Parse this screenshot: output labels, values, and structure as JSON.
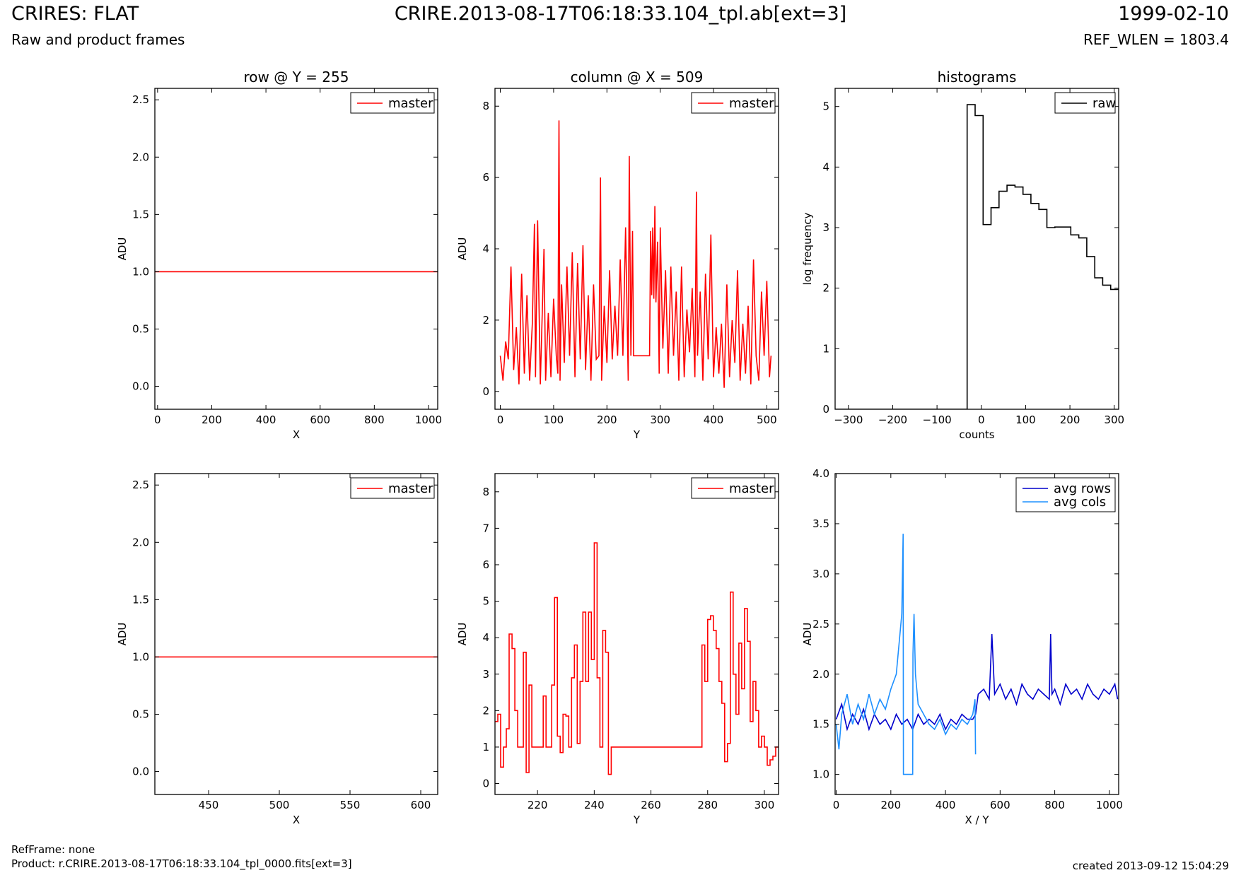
{
  "header": {
    "title": "CRIRES: FLAT",
    "subtitle": "Raw and product frames",
    "file_label": "CRIRE.2013-08-17T06:18:33.104_tpl.ab[ext=3]",
    "date": "1999-02-10",
    "ref_wlen": "REF_WLEN = 1803.4"
  },
  "footer": {
    "refframe": "RefFrame: none",
    "product": "Product: r.CRIRE.2013-08-17T06:18:33.104_tpl_0000.fits[ext=3]",
    "created": "created 2013-09-12 15:04:29"
  },
  "colors": {
    "master": "#ff0000",
    "raw": "#000000",
    "avg_rows": "#0000cc",
    "avg_cols": "#1e90ff"
  },
  "chart_data": [
    {
      "type": "line",
      "title": "row @ Y = 255",
      "xlabel": "X",
      "ylabel": "ADU",
      "xlim": [
        -10,
        1034
      ],
      "ylim": [
        -0.2,
        2.6
      ],
      "xticks": [
        0,
        200,
        400,
        600,
        800,
        1000
      ],
      "yticks": [
        0.0,
        0.5,
        1.0,
        1.5,
        2.0,
        2.5
      ],
      "ytick_labels": [
        "0.0",
        "0.5",
        "1.0",
        "1.5",
        "2.0",
        "2.5"
      ],
      "legend": "upper right",
      "series": [
        {
          "name": "master",
          "color": "#ff0000",
          "x": [
            -10,
            1034
          ],
          "y": [
            1.0,
            1.0
          ]
        }
      ]
    },
    {
      "type": "line",
      "title": "column @ X = 509",
      "xlabel": "Y",
      "ylabel": "ADU",
      "xlim": [
        -10,
        522
      ],
      "ylim": [
        -0.5,
        8.5
      ],
      "xticks": [
        0,
        100,
        200,
        300,
        400,
        500
      ],
      "yticks": [
        0,
        2,
        4,
        6,
        8
      ],
      "ytick_labels": [
        "0",
        "2",
        "4",
        "6",
        "8"
      ],
      "legend": "upper right",
      "series": [
        {
          "name": "master",
          "color": "#ff0000",
          "x": [
            0,
            5,
            10,
            15,
            20,
            25,
            30,
            35,
            40,
            45,
            50,
            55,
            60,
            64,
            66,
            70,
            75,
            80,
            82,
            85,
            90,
            95,
            100,
            105,
            108,
            110,
            112,
            115,
            120,
            125,
            130,
            135,
            140,
            145,
            150,
            155,
            160,
            165,
            170,
            175,
            180,
            185,
            188,
            190,
            195,
            200,
            205,
            210,
            215,
            220,
            225,
            230,
            235,
            240,
            242,
            245,
            248,
            250,
            260,
            270,
            280,
            282,
            284,
            286,
            288,
            290,
            292,
            295,
            298,
            300,
            305,
            310,
            315,
            320,
            325,
            330,
            335,
            340,
            345,
            350,
            355,
            360,
            365,
            368,
            370,
            375,
            380,
            385,
            390,
            395,
            400,
            405,
            410,
            415,
            420,
            425,
            430,
            435,
            440,
            445,
            450,
            455,
            460,
            465,
            470,
            475,
            480,
            485,
            490,
            495,
            500,
            505,
            508
          ],
          "y": [
            1.0,
            0.3,
            1.4,
            0.9,
            3.5,
            0.6,
            1.8,
            0.2,
            3.3,
            0.5,
            2.7,
            0.3,
            1.9,
            4.7,
            0.4,
            4.8,
            0.2,
            2.9,
            4.0,
            0.3,
            2.2,
            0.4,
            2.6,
            1.0,
            0.5,
            7.6,
            0.3,
            3.0,
            0.8,
            3.5,
            1.0,
            3.9,
            0.4,
            3.6,
            0.9,
            4.1,
            0.6,
            2.7,
            0.3,
            3.0,
            0.9,
            1.0,
            6.0,
            0.3,
            2.4,
            0.8,
            3.4,
            0.9,
            2.4,
            1.0,
            3.7,
            1.0,
            4.6,
            0.3,
            6.6,
            1.0,
            4.5,
            1.0,
            1.0,
            1.0,
            1.0,
            4.5,
            2.7,
            4.6,
            2.6,
            5.2,
            2.5,
            4.2,
            0.5,
            4.6,
            1.2,
            3.4,
            0.5,
            3.5,
            1.0,
            2.8,
            0.3,
            3.5,
            0.4,
            2.3,
            1.1,
            2.9,
            0.4,
            5.6,
            1.0,
            2.8,
            0.3,
            3.3,
            0.9,
            4.4,
            0.4,
            1.8,
            0.5,
            1.9,
            0.1,
            3.0,
            0.4,
            2.0,
            0.8,
            3.4,
            0.3,
            1.9,
            0.5,
            2.4,
            0.2,
            3.7,
            1.0,
            0.3,
            2.8,
            1.0,
            3.1,
            0.4,
            1.0
          ]
        }
      ]
    },
    {
      "type": "line",
      "title": "histograms",
      "xlabel": "counts",
      "ylabel": "log frequency",
      "xlim": [
        -330,
        310
      ],
      "ylim": [
        0,
        5.3
      ],
      "xticks": [
        -300,
        -200,
        -100,
        0,
        100,
        200,
        300
      ],
      "xtick_labels": [
        "−300",
        "−200",
        "−100",
        "0",
        "100",
        "200",
        "300"
      ],
      "yticks": [
        0,
        1,
        2,
        3,
        4,
        5
      ],
      "ytick_labels": [
        "0",
        "1",
        "2",
        "3",
        "4",
        "5"
      ],
      "legend": "upper right",
      "series": [
        {
          "name": "raw",
          "color": "#000000",
          "x": [
            -330,
            -32,
            -32,
            -14,
            -14,
            4,
            4,
            22,
            22,
            40,
            40,
            58,
            58,
            76,
            76,
            94,
            94,
            112,
            112,
            130,
            130,
            148,
            148,
            166,
            166,
            184,
            184,
            202,
            202,
            220,
            220,
            238,
            238,
            256,
            256,
            274,
            274,
            292,
            292,
            310
          ],
          "y": [
            0,
            0,
            5.03,
            5.03,
            4.85,
            4.85,
            3.05,
            3.05,
            3.33,
            3.33,
            3.6,
            3.6,
            3.7,
            3.7,
            3.67,
            3.67,
            3.55,
            3.55,
            3.4,
            3.4,
            3.3,
            3.3,
            3.0,
            3.0,
            3.01,
            3.01,
            3.01,
            3.01,
            2.88,
            2.88,
            2.83,
            2.83,
            2.52,
            2.52,
            2.17,
            2.17,
            2.05,
            2.05,
            1.98,
            1.98
          ]
        }
      ]
    },
    {
      "type": "line",
      "xlabel": "X",
      "ylabel": "ADU",
      "xlim": [
        412,
        612
      ],
      "ylim": [
        -0.2,
        2.6
      ],
      "xticks": [
        450,
        500,
        550,
        600
      ],
      "yticks": [
        0.0,
        0.5,
        1.0,
        1.5,
        2.0,
        2.5
      ],
      "ytick_labels": [
        "0.0",
        "0.5",
        "1.0",
        "1.5",
        "2.0",
        "2.5"
      ],
      "legend": "upper right",
      "series": [
        {
          "name": "master",
          "color": "#ff0000",
          "x": [
            412,
            612
          ],
          "y": [
            1.0,
            1.0
          ]
        }
      ]
    },
    {
      "type": "line",
      "xlabel": "Y",
      "ylabel": "ADU",
      "xlim": [
        205,
        305
      ],
      "ylim": [
        -0.3,
        8.5
      ],
      "xticks": [
        220,
        240,
        260,
        280,
        300
      ],
      "yticks": [
        0,
        1,
        2,
        3,
        4,
        5,
        6,
        7,
        8
      ],
      "ytick_labels": [
        "0",
        "1",
        "2",
        "3",
        "4",
        "5",
        "6",
        "7",
        "8"
      ],
      "legend": "upper right",
      "series": [
        {
          "name": "master",
          "color": "#ff0000",
          "x": [
            205,
            206,
            207,
            208,
            209,
            210,
            211,
            212,
            213,
            214,
            215,
            216,
            217,
            218,
            219,
            220,
            221,
            222,
            223,
            224,
            225,
            226,
            227,
            228,
            229,
            230,
            231,
            232,
            233,
            234,
            235,
            236,
            237,
            238,
            239,
            240,
            241,
            242,
            243,
            244,
            245,
            246,
            247,
            278,
            279,
            280,
            281,
            282,
            283,
            284,
            285,
            286,
            287,
            288,
            289,
            290,
            291,
            292,
            293,
            294,
            295,
            296,
            297,
            298,
            299,
            300,
            301,
            302,
            303,
            304
          ],
          "y": [
            1.7,
            1.9,
            0.45,
            1.0,
            1.5,
            4.1,
            3.7,
            2.0,
            1.0,
            1.0,
            3.6,
            0.3,
            2.7,
            1.0,
            1.0,
            1.0,
            1.0,
            2.4,
            1.0,
            1.0,
            2.7,
            5.1,
            1.3,
            0.85,
            1.9,
            1.85,
            1.0,
            2.9,
            3.8,
            1.1,
            2.8,
            4.7,
            2.8,
            4.7,
            3.4,
            6.6,
            2.9,
            1.0,
            4.2,
            3.6,
            0.25,
            1.0,
            1.0,
            3.8,
            2.8,
            4.5,
            4.6,
            4.2,
            3.7,
            2.8,
            2.2,
            0.6,
            1.1,
            5.25,
            3.0,
            1.9,
            3.85,
            2.6,
            4.8,
            3.9,
            1.7,
            2.8,
            2.0,
            1.0,
            1.3,
            1.0,
            0.5,
            0.65,
            0.75,
            1.0
          ]
        }
      ]
    },
    {
      "type": "line",
      "xlabel": "X / Y",
      "ylabel": "ADU",
      "xlim": [
        -4,
        1034
      ],
      "ylim": [
        0.8,
        4.0
      ],
      "xticks": [
        0,
        200,
        400,
        600,
        800,
        1000
      ],
      "yticks": [
        1.0,
        1.5,
        2.0,
        2.5,
        3.0,
        3.5,
        4.0
      ],
      "ytick_labels": [
        "1.0",
        "1.5",
        "2.0",
        "2.5",
        "3.0",
        "3.5",
        "4.0"
      ],
      "legend": "upper right",
      "series": [
        {
          "name": "avg rows",
          "color": "#0000cc",
          "x": [
            0,
            20,
            40,
            60,
            80,
            100,
            120,
            140,
            160,
            180,
            200,
            220,
            240,
            260,
            280,
            300,
            320,
            340,
            360,
            380,
            400,
            420,
            440,
            460,
            480,
            500,
            510,
            520,
            540,
            560,
            570,
            580,
            600,
            620,
            640,
            660,
            680,
            700,
            720,
            740,
            760,
            780,
            785,
            790,
            800,
            820,
            840,
            860,
            880,
            900,
            920,
            940,
            960,
            980,
            1000,
            1020,
            1030
          ],
          "y": [
            1.55,
            1.7,
            1.45,
            1.6,
            1.5,
            1.65,
            1.45,
            1.6,
            1.5,
            1.55,
            1.45,
            1.6,
            1.5,
            1.55,
            1.45,
            1.6,
            1.5,
            1.55,
            1.5,
            1.6,
            1.45,
            1.55,
            1.5,
            1.6,
            1.55,
            1.55,
            1.6,
            1.8,
            1.85,
            1.75,
            2.4,
            1.8,
            1.9,
            1.75,
            1.85,
            1.7,
            1.9,
            1.8,
            1.75,
            1.85,
            1.8,
            1.75,
            2.4,
            1.8,
            1.85,
            1.7,
            1.9,
            1.8,
            1.85,
            1.75,
            1.9,
            1.8,
            1.75,
            1.85,
            1.8,
            1.9,
            1.75
          ]
        },
        {
          "name": "avg cols",
          "color": "#1e90ff",
          "x": [
            0,
            10,
            20,
            40,
            60,
            80,
            100,
            120,
            140,
            160,
            180,
            200,
            220,
            230,
            240,
            245,
            246,
            250,
            255,
            260,
            265,
            270,
            275,
            280,
            281,
            285,
            290,
            300,
            320,
            340,
            360,
            380,
            400,
            420,
            440,
            460,
            480,
            500,
            508,
            510
          ],
          "y": [
            1.5,
            1.25,
            1.6,
            1.8,
            1.5,
            1.7,
            1.55,
            1.8,
            1.6,
            1.75,
            1.65,
            1.85,
            2.0,
            2.3,
            2.6,
            3.4,
            1.0,
            1.0,
            1.0,
            1.0,
            1.0,
            1.0,
            1.0,
            1.0,
            2.2,
            2.6,
            2.0,
            1.7,
            1.6,
            1.5,
            1.45,
            1.55,
            1.4,
            1.5,
            1.45,
            1.55,
            1.5,
            1.6,
            1.75,
            1.2
          ]
        }
      ]
    }
  ]
}
